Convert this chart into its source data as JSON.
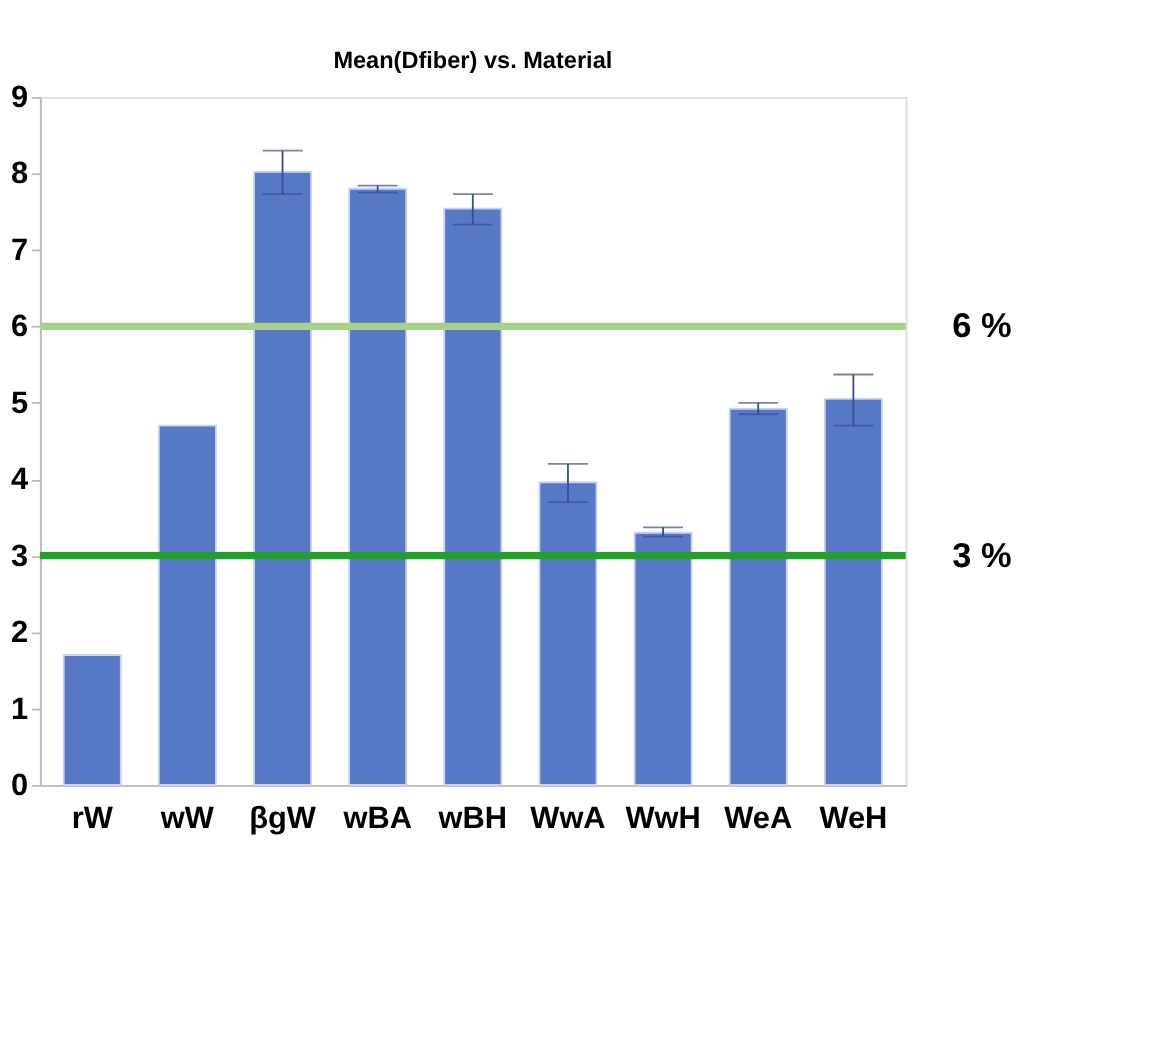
{
  "chart_data": {
    "type": "bar",
    "title": "Mean(Dfiber) vs. Material",
    "categories": [
      "rW",
      "wW",
      "βgW",
      "wBA",
      "wBH",
      "WwA",
      "WwH",
      "WeA",
      "WeH"
    ],
    "values": [
      1.7,
      4.7,
      8.02,
      7.8,
      7.54,
      3.96,
      3.3,
      4.92,
      5.05
    ],
    "errors": [
      null,
      null,
      [
        7.73,
        8.3
      ],
      [
        7.75,
        7.84
      ],
      [
        7.33,
        7.73
      ],
      [
        3.7,
        4.2
      ],
      [
        3.25,
        3.37
      ],
      [
        4.85,
        5.0
      ],
      [
        4.7,
        5.37
      ]
    ],
    "color": "#5778c4",
    "ylim": [
      0,
      9
    ],
    "yticks": [
      0,
      1,
      2,
      3,
      4,
      5,
      6,
      7,
      8,
      9
    ],
    "grid": false,
    "ref_lines": [
      {
        "axis": "y",
        "value": 6,
        "label": "6 %",
        "color": "#a9d18e"
      },
      {
        "axis": "y",
        "value": 3,
        "label": "3 %",
        "color": "#22a02a"
      }
    ]
  }
}
